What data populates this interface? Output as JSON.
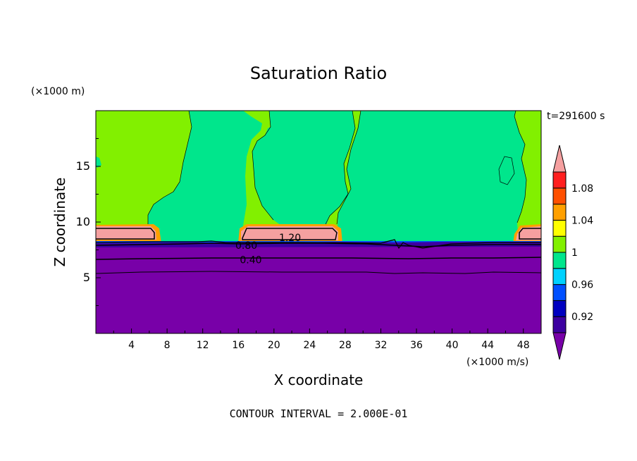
{
  "chart_data": {
    "type": "heatmap",
    "title": "Saturation Ratio",
    "xlabel": "X coordinate",
    "ylabel": "Z coordinate",
    "x_unit": "(×1000 m/s)",
    "y_unit": "(×1000 m)",
    "time_label": "t=291600 s",
    "footer": "CONTOUR INTERVAL = 2.000E-01",
    "xlim": [
      0,
      50
    ],
    "ylim": [
      0,
      20
    ],
    "x_ticks": [
      "4",
      "8",
      "12",
      "16",
      "20",
      "24",
      "28",
      "32",
      "36",
      "40",
      "44",
      "48"
    ],
    "x_tick_values": [
      4,
      8,
      12,
      16,
      20,
      24,
      28,
      32,
      36,
      40,
      44,
      48
    ],
    "y_ticks": [
      "5",
      "10",
      "15"
    ],
    "y_tick_values": [
      5,
      10,
      15
    ],
    "contour_labels": [
      {
        "text": "1.20",
        "x": 21.8,
        "z": 8.6
      },
      {
        "text": "0.80",
        "x": 16.9,
        "z": 7.9
      },
      {
        "text": "0.40",
        "x": 17.4,
        "z": 6.6
      }
    ],
    "colorbar": {
      "levels": [
        {
          "color": "#7800a8",
          "range": "< 0.90"
        },
        {
          "color": "#3c00a0",
          "range": "0.90–0.92"
        },
        {
          "color": "#0000c0",
          "range": "0.92–0.94"
        },
        {
          "color": "#0050ff",
          "range": "0.94–0.96"
        },
        {
          "color": "#00d2ff",
          "range": "0.96–0.98"
        },
        {
          "color": "#00e68c",
          "range": "0.98–1.00"
        },
        {
          "color": "#82f000",
          "range": "1.00–1.02"
        },
        {
          "color": "#ffff00",
          "range": "1.02–1.04"
        },
        {
          "color": "#ffa000",
          "range": "1.04–1.06"
        },
        {
          "color": "#ff5000",
          "range": "1.06–1.08"
        },
        {
          "color": "#ff1e1e",
          "range": "1.08–1.10"
        },
        {
          "color": "#f5a0a0",
          "range": "> 1.10"
        }
      ],
      "tick_labels": [
        "0.92",
        "0.96",
        "1",
        "1.04",
        "1.08"
      ]
    }
  }
}
